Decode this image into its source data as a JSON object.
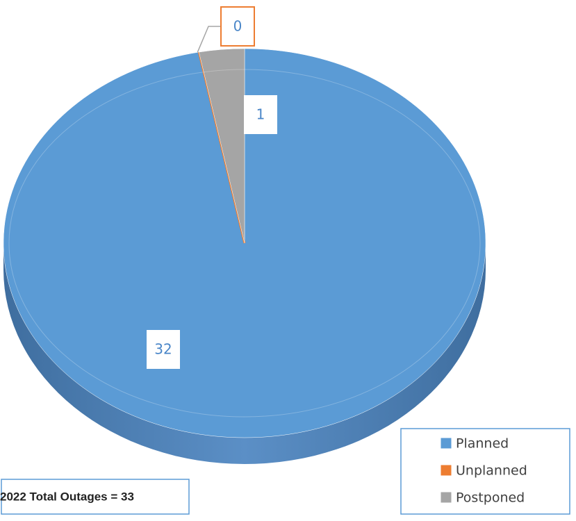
{
  "chart_data": {
    "type": "pie",
    "categories": [
      "Planned",
      "Unplanned",
      "Postponed"
    ],
    "values": [
      32,
      0,
      1
    ],
    "colors": [
      "#5b9bd5",
      "#ed7d31",
      "#a5a5a5"
    ],
    "annotation": "2022 Total Outages = 33",
    "legend": "bottom-right"
  }
}
